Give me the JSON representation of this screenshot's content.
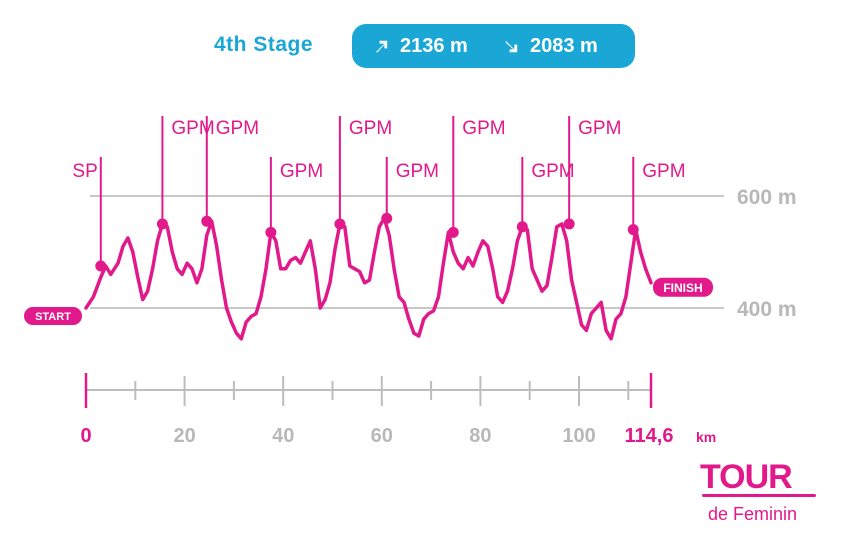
{
  "header": {
    "stage_name": "4th Stage",
    "ascent": "2136 m",
    "descent": "2083 m",
    "ascent_icon": "arrow-up-right-icon",
    "descent_icon": "arrow-down-right-icon"
  },
  "colors": {
    "profile": "#e2198a",
    "accent": "#1aa7d6",
    "grid": "#c8c8c8",
    "tick_gray": "#b8b8b8"
  },
  "chart_data": {
    "type": "line",
    "x_unit": "km",
    "y_unit": "m",
    "xlim": [
      0,
      114.6
    ],
    "ylim_gridlines": [
      400,
      600
    ],
    "grid": "horizontal",
    "x_ticks": [
      "0",
      "20",
      "40",
      "60",
      "80",
      "100",
      "114,6"
    ],
    "x_tick_values": [
      0,
      20,
      40,
      60,
      80,
      100,
      114.6
    ],
    "y_ticks": [
      "400 m",
      "600 m"
    ],
    "y_tick_values": [
      400,
      600
    ],
    "start_label": "START",
    "finish_label": "FINISH",
    "series": [
      {
        "x": [
          0,
          1.5,
          3,
          4,
          5,
          6.5,
          7.5,
          8.5,
          9.5,
          10.5,
          11.5,
          12.5,
          13.5,
          14.5,
          15.5,
          16.5,
          17.5,
          18.5,
          19.5,
          20.5,
          21.5,
          22.5,
          23.5,
          24.5,
          25.5,
          26.5,
          27.5,
          28.5,
          29.5,
          30.5,
          31.5,
          32.5,
          33.5,
          34.5,
          35.5,
          36.5,
          37.5,
          38.5,
          39.5,
          40.5,
          41.5,
          42.5,
          43.5,
          44.5,
          45.5,
          46.5,
          47.5,
          48.5,
          49.5,
          50.5,
          51.5,
          52.5,
          53.5,
          54.5,
          55.5,
          56.5,
          57.5,
          58.5,
          59.5,
          60.5,
          61.5,
          62.5,
          63.5,
          64.5,
          65.5,
          66.5,
          67.5,
          68.5,
          69.5,
          70.5,
          71.5,
          72.5,
          73.5,
          74.5,
          75.5,
          76.5,
          77.5,
          78.5,
          79.5,
          80.5,
          81.5,
          82.5,
          83.5,
          84.5,
          85.5,
          86.5,
          87.5,
          88.5,
          89.5,
          90.5,
          91.5,
          92.5,
          93.5,
          94.5,
          95.5,
          96.5,
          97.5,
          98.5,
          99.5,
          100.5,
          101.5,
          102.5,
          103.5,
          104.5,
          105.5,
          106.5,
          107.5,
          108.5,
          109.5,
          110.5,
          111.5,
          112.5,
          113.5,
          114.6
        ],
        "y": [
          400,
          420,
          455,
          475,
          460,
          480,
          510,
          525,
          500,
          455,
          415,
          430,
          470,
          520,
          550,
          545,
          500,
          470,
          460,
          480,
          470,
          445,
          470,
          530,
          555,
          510,
          450,
          400,
          375,
          355,
          345,
          375,
          385,
          390,
          420,
          470,
          535,
          520,
          470,
          470,
          485,
          490,
          480,
          500,
          520,
          470,
          400,
          415,
          445,
          505,
          550,
          545,
          475,
          470,
          465,
          445,
          450,
          500,
          545,
          560,
          530,
          470,
          420,
          410,
          380,
          355,
          350,
          380,
          390,
          395,
          420,
          480,
          535,
          500,
          480,
          470,
          490,
          475,
          500,
          520,
          510,
          470,
          420,
          410,
          430,
          470,
          520,
          545,
          540,
          470,
          450,
          430,
          440,
          490,
          545,
          550,
          520,
          450,
          410,
          370,
          360,
          390,
          400,
          410,
          360,
          345,
          380,
          390,
          420,
          480,
          540,
          500,
          470,
          445
        ]
      }
    ],
    "markers": [
      {
        "label": "SP",
        "x": 3,
        "y": 475
      },
      {
        "label": "GPM",
        "x": 15.5,
        "y": 550
      },
      {
        "label": "GPM",
        "x": 24.5,
        "y": 555
      },
      {
        "label": "GPM",
        "x": 37.5,
        "y": 535
      },
      {
        "label": "GPM",
        "x": 51.5,
        "y": 550
      },
      {
        "label": "GPM",
        "x": 61,
        "y": 560
      },
      {
        "label": "GPM",
        "x": 74.5,
        "y": 535
      },
      {
        "label": "GPM",
        "x": 88.5,
        "y": 545
      },
      {
        "label": "GPM",
        "x": 98,
        "y": 550
      },
      {
        "label": "GPM",
        "x": 111,
        "y": 540
      }
    ]
  },
  "logo": {
    "main": "TOUR",
    "sub": "de Feminin"
  }
}
